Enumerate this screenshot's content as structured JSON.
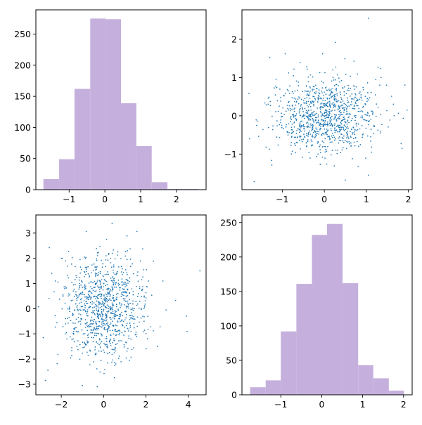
{
  "colors": {
    "hist_fill": "#c5b0dd",
    "scatter_point": "#1f77b4",
    "axis_line": "#000000",
    "background": "#ffffff"
  },
  "chart_data": [
    {
      "type": "bar",
      "panel": "top-left",
      "bin_edges": [
        -1.72,
        -1.28,
        -0.85,
        -0.41,
        0.02,
        0.45,
        0.88,
        1.31,
        1.75,
        2.18,
        2.61
      ],
      "values": [
        17,
        49,
        162,
        275,
        274,
        139,
        70,
        12,
        1,
        1
      ],
      "xlim": [
        -1.93,
        2.83
      ],
      "ylim": [
        0,
        289
      ],
      "xticks": [
        -1,
        0,
        1,
        2
      ],
      "xtick_labels": [
        "−1",
        "0",
        "1",
        "2"
      ],
      "yticks": [
        0,
        50,
        100,
        150,
        200,
        250
      ],
      "ytick_labels": [
        "0",
        "50",
        "100",
        "150",
        "200",
        "250"
      ],
      "title": "",
      "xlabel": "",
      "ylabel": ""
    },
    {
      "type": "scatter",
      "panel": "top-right",
      "n_points": 1000,
      "x_mean": 0.05,
      "x_std": 0.6,
      "y_mean": 0.0,
      "y_std": 0.5,
      "outliers": [
        {
          "x": 1.05,
          "y": 2.55
        },
        {
          "x": 0.27,
          "y": 1.92
        },
        {
          "x": 1.97,
          "y": 0.15
        },
        {
          "x": -1.67,
          "y": -1.72
        },
        {
          "x": -1.78,
          "y": -0.6
        },
        {
          "x": 1.35,
          "y": 1.0
        },
        {
          "x": -0.04,
          "y": 1.62
        },
        {
          "x": -0.93,
          "y": 1.62
        },
        {
          "x": -1.3,
          "y": 1.52
        },
        {
          "x": 0.5,
          "y": -1.68
        },
        {
          "x": 1.05,
          "y": -1.55
        },
        {
          "x": 1.85,
          "y": -0.85
        }
      ],
      "xlim": [
        -1.96,
        2.09
      ],
      "ylim": [
        -1.93,
        2.77
      ],
      "xticks": [
        -1,
        0,
        1,
        2
      ],
      "xtick_labels": [
        "−1",
        "0",
        "1",
        "2"
      ],
      "yticks": [
        -1,
        0,
        1,
        2
      ],
      "ytick_labels": [
        "−1",
        "0",
        "1",
        "2"
      ],
      "title": "",
      "xlabel": "",
      "ylabel": ""
    },
    {
      "type": "scatter",
      "panel": "bottom-left",
      "n_points": 1000,
      "x_mean": 0.0,
      "x_std": 1.0,
      "y_mean": 0.0,
      "y_std": 1.0,
      "outliers": [
        {
          "x": 4.55,
          "y": 1.5
        },
        {
          "x": 0.4,
          "y": 3.38
        },
        {
          "x": -2.75,
          "y": -2.85
        },
        {
          "x": 3.4,
          "y": 0.33
        },
        {
          "x": -2.85,
          "y": -1.15
        },
        {
          "x": -0.3,
          "y": -3.1
        },
        {
          "x": -1.0,
          "y": -3.05
        },
        {
          "x": 2.8,
          "y": 1.1
        },
        {
          "x": 2.55,
          "y": -1.5
        },
        {
          "x": -2.45,
          "y": 1.4
        }
      ],
      "xlim": [
        -3.2,
        4.84
      ],
      "ylim": [
        -3.42,
        3.72
      ],
      "xticks": [
        -2,
        0,
        2,
        4
      ],
      "xtick_labels": [
        "−2",
        "0",
        "2",
        "4"
      ],
      "yticks": [
        -3,
        -2,
        -1,
        0,
        1,
        2,
        3
      ],
      "ytick_labels": [
        "−3",
        "−2",
        "−1",
        "0",
        "1",
        "2",
        "3"
      ],
      "title": "",
      "xlabel": "",
      "ylabel": ""
    },
    {
      "type": "bar",
      "panel": "bottom-right",
      "bin_edges": [
        -1.75,
        -1.37,
        -1.0,
        -0.62,
        -0.24,
        0.13,
        0.51,
        0.89,
        1.26,
        1.64,
        2.01
      ],
      "values": [
        11,
        21,
        92,
        161,
        232,
        248,
        162,
        43,
        24,
        6
      ],
      "xlim": [
        -1.95,
        2.21
      ],
      "ylim": [
        0,
        261
      ],
      "xticks": [
        -1,
        0,
        1,
        2
      ],
      "xtick_labels": [
        "−1",
        "0",
        "1",
        "2"
      ],
      "yticks": [
        0,
        50,
        100,
        150,
        200,
        250
      ],
      "ytick_labels": [
        "0",
        "50",
        "100",
        "150",
        "200",
        "250"
      ],
      "title": "",
      "xlabel": "",
      "ylabel": ""
    }
  ]
}
